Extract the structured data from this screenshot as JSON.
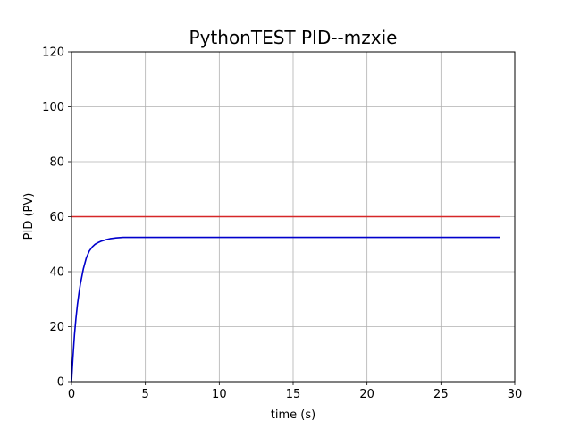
{
  "chart_data": {
    "type": "line",
    "title": "PythonTEST PID--mzxie",
    "xlabel": "time (s)",
    "ylabel": "PID (PV)",
    "xlim": [
      0,
      30
    ],
    "ylim": [
      0,
      120
    ],
    "xticks": [
      0,
      5,
      10,
      15,
      20,
      25,
      30
    ],
    "yticks": [
      0,
      20,
      40,
      60,
      80,
      100,
      120
    ],
    "grid": true,
    "series": [
      {
        "color": "#d62728",
        "x": [
          0,
          29
        ],
        "y": [
          60,
          60
        ]
      },
      {
        "color": "#0000cc",
        "x": [
          0,
          0.1,
          0.2,
          0.3,
          0.4,
          0.5,
          0.6,
          0.8,
          1.0,
          1.2,
          1.4,
          1.6,
          1.8,
          2.0,
          2.3,
          2.6,
          3.0,
          3.5,
          4.0,
          5.0,
          7.0,
          10.0,
          15.0,
          20.0,
          25.0,
          29.0
        ],
        "y": [
          0,
          9,
          17,
          23,
          28,
          32,
          35.5,
          41,
          45,
          47.5,
          49,
          50,
          50.6,
          51.1,
          51.6,
          52,
          52.3,
          52.5,
          52.5,
          52.5,
          52.5,
          52.5,
          52.5,
          52.5,
          52.5,
          52.5
        ]
      }
    ]
  }
}
